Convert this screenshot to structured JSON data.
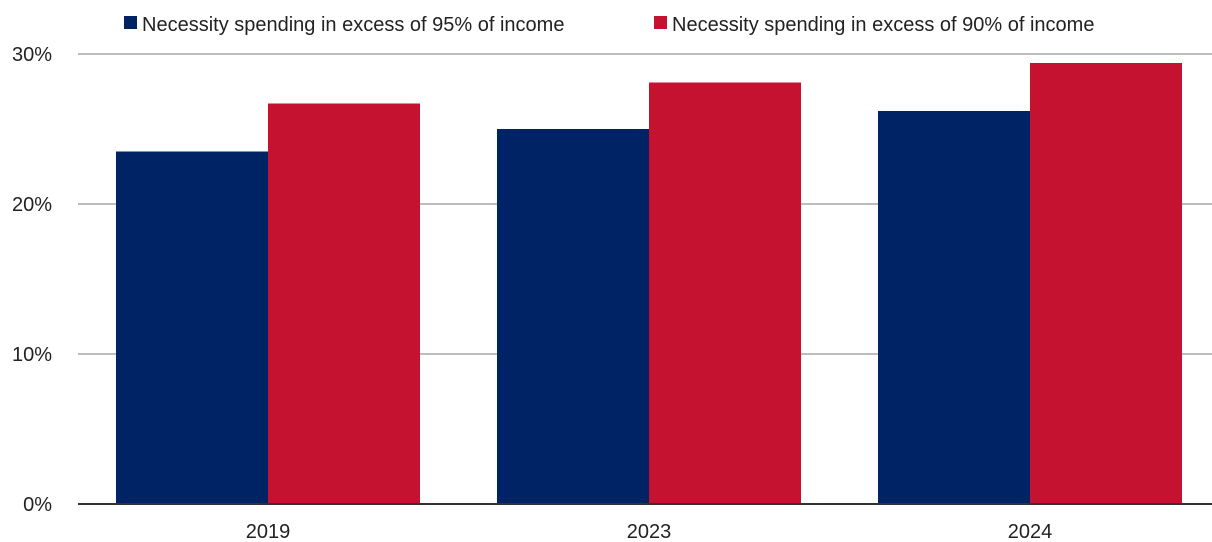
{
  "chart_data": {
    "type": "bar",
    "title": "",
    "xlabel": "",
    "ylabel": "",
    "categories": [
      "2019",
      "2023",
      "2024"
    ],
    "series": [
      {
        "name": "Necessity spending in excess of 95% of income",
        "values": [
          23.5,
          25.0,
          26.2
        ],
        "color": "#002366"
      },
      {
        "name": "Necessity spending in excess of 90% of income",
        "values": [
          26.7,
          28.1,
          29.4
        ],
        "color": "#C41230"
      }
    ],
    "ylim": [
      0,
      30
    ],
    "yticks": [
      {
        "value": 0,
        "label": "0%"
      },
      {
        "value": 10,
        "label": "10%"
      },
      {
        "value": 20,
        "label": "20%"
      },
      {
        "value": 30,
        "label": "30%"
      }
    ],
    "grid": true,
    "legend_position": "top"
  }
}
